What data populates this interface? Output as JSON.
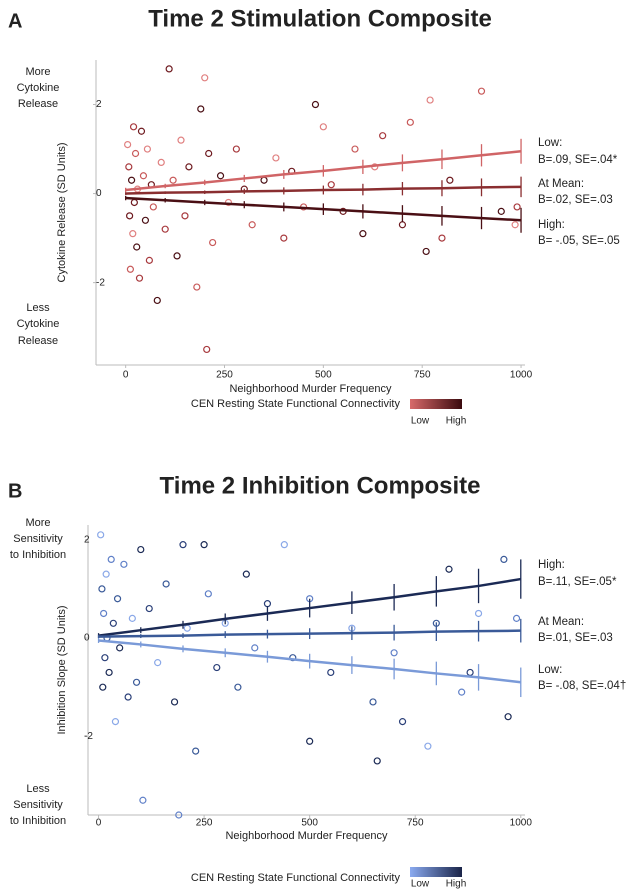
{
  "chart_data": [
    {
      "type": "scatter",
      "panel": "A",
      "title": "Time 2 Stimulation Composite",
      "x_label": "Neighborhood Murder Frequency",
      "y_label": "Cytokine Release (SD Units)",
      "y_top_label": [
        "More",
        "Cytokine",
        "Release"
      ],
      "y_bottom_label": [
        "Less",
        "Cytokine",
        "Release"
      ],
      "xlim": [
        -75,
        1010
      ],
      "ylim": [
        -3.85,
        3.0
      ],
      "xticks": [
        0,
        250,
        500,
        750,
        1000
      ],
      "yticks": [
        -2,
        0,
        2
      ],
      "points": {
        "x": [
          5,
          8,
          10,
          12,
          15,
          18,
          20,
          22,
          25,
          28,
          30,
          35,
          40,
          45,
          50,
          55,
          60,
          65,
          70,
          80,
          90,
          100,
          110,
          120,
          130,
          140,
          150,
          160,
          180,
          190,
          200,
          205,
          210,
          220,
          240,
          260,
          280,
          300,
          320,
          350,
          380,
          400,
          420,
          450,
          480,
          500,
          520,
          550,
          580,
          600,
          630,
          650,
          700,
          720,
          760,
          770,
          800,
          820,
          900,
          950,
          985,
          990
        ],
        "y": [
          1.1,
          0.6,
          -0.5,
          -1.7,
          0.3,
          -0.9,
          1.5,
          -0.2,
          0.9,
          -1.2,
          0.1,
          -1.9,
          1.4,
          0.4,
          -0.6,
          1.0,
          -1.5,
          0.2,
          -0.3,
          -2.4,
          0.7,
          -0.8,
          2.8,
          0.3,
          -1.4,
          1.2,
          -0.5,
          0.6,
          -2.1,
          1.9,
          2.6,
          -3.5,
          0.9,
          -1.1,
          0.4,
          -0.2,
          1.0,
          0.1,
          -0.7,
          0.3,
          0.8,
          -1.0,
          0.5,
          -0.3,
          2.0,
          1.5,
          0.2,
          -0.4,
          1.0,
          -0.9,
          0.6,
          1.3,
          -0.7,
          1.6,
          -1.3,
          2.1,
          -1.0,
          0.3,
          2.3,
          -0.4,
          -0.7,
          -0.3
        ]
      },
      "point_palette": [
        "#e08080",
        "#a83a3e",
        "#6e1a1f",
        "#c85a5a",
        "#4a0f14"
      ],
      "series": [
        {
          "name": "Low:",
          "stats": "B=.09, SE=.04*",
          "color": "#d06466",
          "x": [
            0,
            100,
            200,
            300,
            400,
            500,
            600,
            700,
            800,
            900,
            1000
          ],
          "values": [
            0.08,
            0.17,
            0.25,
            0.34,
            0.43,
            0.51,
            0.6,
            0.69,
            0.77,
            0.86,
            0.95
          ],
          "errors": [
            0.05,
            0.05,
            0.06,
            0.08,
            0.1,
            0.13,
            0.16,
            0.19,
            0.22,
            0.25,
            0.28
          ]
        },
        {
          "name": "At Mean:",
          "stats": "B=.02, SE=.03",
          "color": "#8a2e30",
          "x": [
            0,
            100,
            200,
            300,
            400,
            500,
            600,
            700,
            800,
            900,
            1000
          ],
          "values": [
            0,
            0.02,
            0.03,
            0.05,
            0.06,
            0.08,
            0.09,
            0.11,
            0.12,
            0.14,
            0.15
          ],
          "errors": [
            0.03,
            0.03,
            0.04,
            0.06,
            0.08,
            0.1,
            0.13,
            0.15,
            0.18,
            0.2,
            0.23
          ]
        },
        {
          "name": "High:",
          "stats": "B= -.05, SE=.05",
          "color": "#4a0f14",
          "x": [
            0,
            100,
            200,
            300,
            400,
            500,
            600,
            700,
            800,
            900,
            1000
          ],
          "values": [
            -0.1,
            -0.15,
            -0.2,
            -0.25,
            -0.3,
            -0.35,
            -0.4,
            -0.45,
            -0.5,
            -0.55,
            -0.6
          ],
          "errors": [
            0.05,
            0.05,
            0.06,
            0.08,
            0.1,
            0.13,
            0.16,
            0.19,
            0.22,
            0.25,
            0.28
          ]
        }
      ],
      "legend": {
        "title": "CEN Resting State Functional Connectivity",
        "low": "Low",
        "high": "High",
        "low_color": "#d86a6a",
        "high_color": "#3a0a0e"
      }
    },
    {
      "type": "scatter",
      "panel": "B",
      "title": "Time 2 Inhibition Composite",
      "x_label": "Neighborhood Murder Frequency",
      "y_label": "Inhibition Slope (SD Units)",
      "y_top_label": [
        "More",
        "Sensitivity",
        "to Inhibition"
      ],
      "y_bottom_label": [
        "Less",
        "Sensitivity",
        "to Inhibition"
      ],
      "xlim": [
        -25,
        1010
      ],
      "ylim": [
        -3.6,
        2.3
      ],
      "xticks": [
        0,
        250,
        500,
        750,
        1000
      ],
      "yticks": [
        -2,
        0,
        2
      ],
      "points": {
        "x": [
          5,
          8,
          10,
          12,
          15,
          18,
          20,
          25,
          30,
          35,
          40,
          45,
          50,
          60,
          70,
          80,
          90,
          100,
          105,
          120,
          140,
          160,
          180,
          190,
          200,
          210,
          230,
          250,
          260,
          280,
          300,
          330,
          350,
          370,
          400,
          440,
          460,
          500,
          500,
          550,
          600,
          650,
          660,
          700,
          720,
          780,
          800,
          830,
          860,
          880,
          900,
          960,
          970,
          990
        ],
        "y": [
          2.1,
          1.0,
          -1.0,
          0.5,
          -0.4,
          1.3,
          0.0,
          -0.7,
          1.6,
          0.3,
          -1.7,
          0.8,
          -0.2,
          1.5,
          -1.2,
          0.4,
          -0.9,
          1.8,
          -3.3,
          0.6,
          -0.5,
          1.1,
          -1.3,
          -3.6,
          1.9,
          0.2,
          -2.3,
          1.9,
          0.9,
          -0.6,
          0.3,
          -1.0,
          1.3,
          -0.2,
          0.7,
          1.9,
          -0.4,
          -2.1,
          0.8,
          -0.7,
          0.2,
          -1.3,
          -2.5,
          -0.3,
          -1.7,
          -2.2,
          0.3,
          1.4,
          -1.1,
          -0.7,
          0.5,
          1.6,
          -1.6,
          0.4
        ]
      },
      "point_palette": [
        "#8aa8e8",
        "#3a5a98",
        "#1b2a55",
        "#6080c8",
        "#2a3f78"
      ],
      "series": [
        {
          "name": "High:",
          "stats": "B=.11, SE=.05*",
          "color": "#1b2a55",
          "x": [
            0,
            100,
            200,
            300,
            400,
            500,
            600,
            700,
            800,
            900,
            1000
          ],
          "values": [
            0.05,
            0.16,
            0.27,
            0.39,
            0.5,
            0.61,
            0.72,
            0.83,
            0.95,
            1.06,
            1.2
          ],
          "errors": [
            0.05,
            0.06,
            0.08,
            0.11,
            0.15,
            0.19,
            0.23,
            0.27,
            0.31,
            0.35,
            0.4
          ]
        },
        {
          "name": "At Mean:",
          "stats": "B=.01, SE=.03",
          "color": "#3a5a98",
          "x": [
            0,
            100,
            200,
            300,
            400,
            500,
            600,
            700,
            800,
            900,
            1000
          ],
          "values": [
            0.03,
            0.04,
            0.05,
            0.07,
            0.08,
            0.09,
            0.1,
            0.11,
            0.13,
            0.14,
            0.15
          ],
          "errors": [
            0.03,
            0.04,
            0.05,
            0.07,
            0.09,
            0.11,
            0.14,
            0.16,
            0.19,
            0.21,
            0.24
          ]
        },
        {
          "name": "Low:",
          "stats": "B= -.08, SE=.04†",
          "color": "#7a9ad8",
          "x": [
            0,
            100,
            200,
            300,
            400,
            500,
            600,
            700,
            800,
            900,
            1000
          ],
          "values": [
            -0.05,
            -0.13,
            -0.22,
            -0.3,
            -0.38,
            -0.47,
            -0.55,
            -0.63,
            -0.72,
            -0.8,
            -0.9
          ],
          "errors": [
            0.05,
            0.06,
            0.07,
            0.09,
            0.12,
            0.15,
            0.18,
            0.21,
            0.24,
            0.27,
            0.3
          ]
        }
      ],
      "legend": {
        "title": "CEN Resting State Functional Connectivity",
        "low": "Low",
        "high": "High",
        "low_color": "#8aaaf0",
        "high_color": "#1a2448"
      }
    }
  ]
}
